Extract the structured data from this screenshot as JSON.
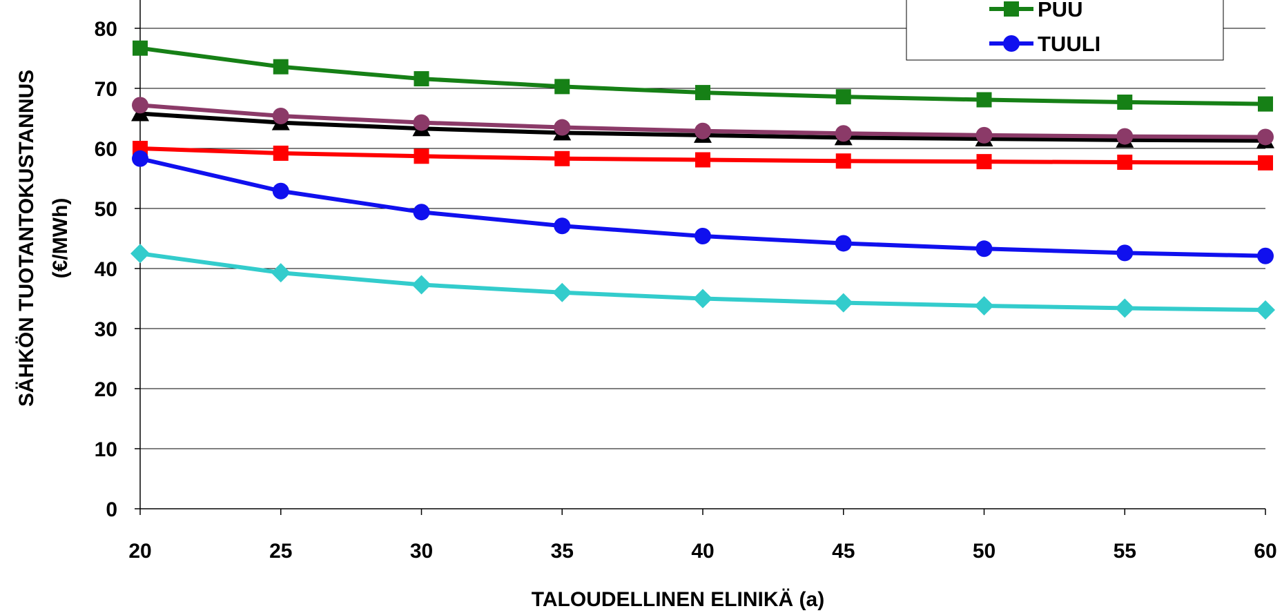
{
  "chart_data": {
    "type": "line",
    "title": "",
    "xlabel": "TALOUDELLINEN ELINIKÄ (a)",
    "ylabel_line1": "SÄHKÖN TUOTANTOKUSTANNUS",
    "ylabel_line2": "(€/MWh)",
    "x": [
      20,
      25,
      30,
      35,
      40,
      45,
      50,
      55,
      60
    ],
    "xlim": [
      20,
      60
    ],
    "ylim": [
      0,
      80
    ],
    "yticks": [
      0,
      10,
      20,
      30,
      40,
      50,
      60,
      70,
      80
    ],
    "grid": "horizontal",
    "legend_position": "top-right",
    "series": [
      {
        "name": "PUU",
        "color": "#168016",
        "marker": "square",
        "in_legend": true,
        "values": [
          76.7,
          73.6,
          71.6,
          70.3,
          69.3,
          68.6,
          68.1,
          67.7,
          67.4
        ]
      },
      {
        "name": "TUULI",
        "color": "#1010ee",
        "marker": "circle",
        "in_legend": true,
        "values": [
          58.3,
          52.9,
          49.4,
          47.1,
          45.4,
          44.2,
          43.3,
          42.6,
          42.1
        ]
      },
      {
        "color": "#000000",
        "marker": "triangle",
        "in_legend": false,
        "values": [
          65.8,
          64.3,
          63.3,
          62.6,
          62.2,
          61.8,
          61.6,
          61.4,
          61.3
        ]
      },
      {
        "color": "#8b3a68",
        "marker": "circle",
        "in_legend": false,
        "values": [
          67.2,
          65.4,
          64.3,
          63.5,
          62.9,
          62.5,
          62.2,
          62.0,
          61.9
        ]
      },
      {
        "color": "#ff0000",
        "marker": "square",
        "in_legend": false,
        "values": [
          60.0,
          59.2,
          58.7,
          58.3,
          58.1,
          57.9,
          57.8,
          57.7,
          57.6
        ]
      },
      {
        "color": "#33cccc",
        "marker": "diamond",
        "in_legend": false,
        "values": [
          42.5,
          39.3,
          37.3,
          36.0,
          35.0,
          34.3,
          33.8,
          33.4,
          33.1
        ]
      }
    ]
  }
}
